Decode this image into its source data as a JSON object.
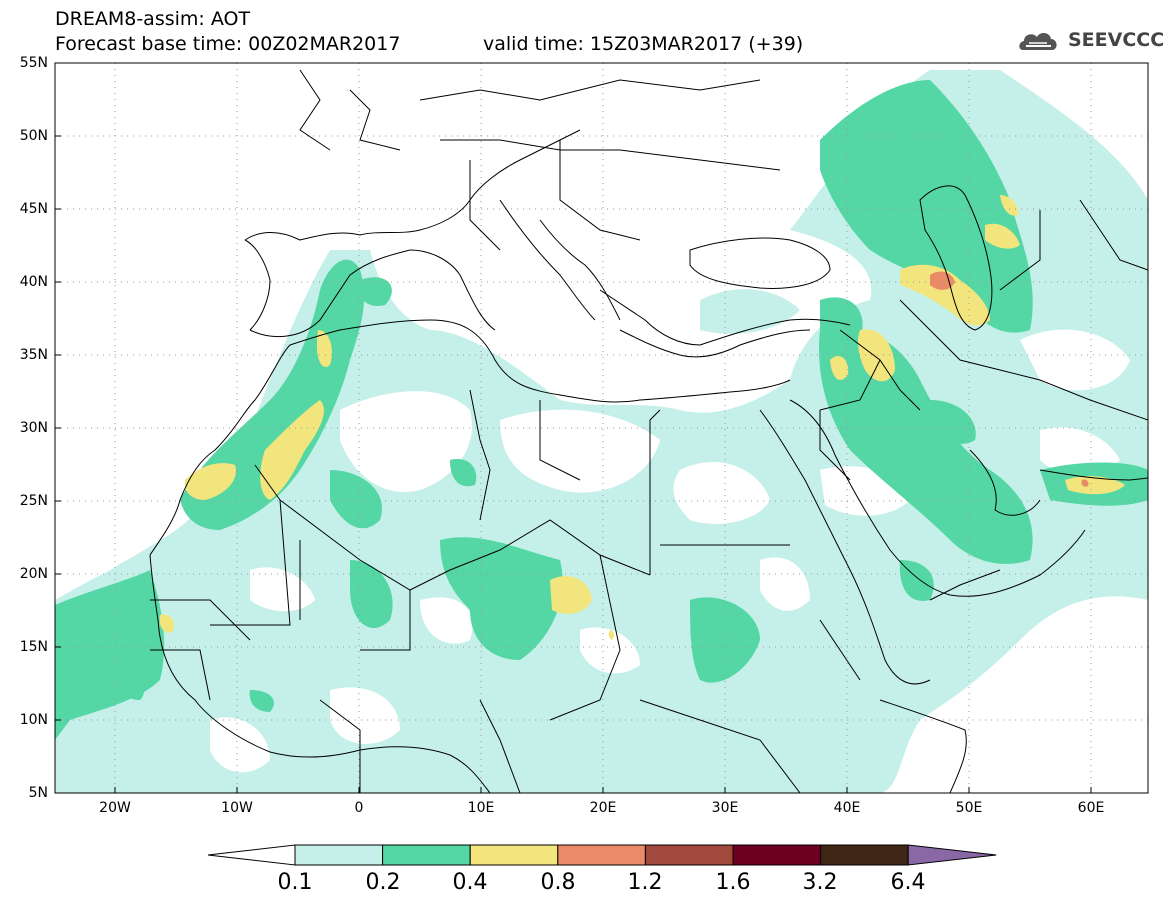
{
  "header": {
    "title_line1": "DREAM8-assim: AOT",
    "title_line2": "Forecast base time: 00Z02MAR2017",
    "valid_time": "valid time: 15Z03MAR2017 (+39)",
    "logo_text": "SEEVCCC",
    "logo_icon": "cloud-logo-icon"
  },
  "map": {
    "lat_labels": [
      "55N",
      "50N",
      "45N",
      "40N",
      "35N",
      "30N",
      "25N",
      "20N",
      "15N",
      "10N",
      "5N"
    ],
    "lon_labels": [
      "20W",
      "10W",
      "0",
      "10E",
      "20E",
      "30E",
      "40E",
      "50E",
      "60E"
    ]
  },
  "legend": {
    "levels": [
      "0.1",
      "0.2",
      "0.4",
      "0.8",
      "1.2",
      "1.6",
      "3.2",
      "6.4"
    ],
    "colors": [
      "#ffffff",
      "#c5f0ea",
      "#54d7a4",
      "#f3e57d",
      "#e98b66",
      "#a2493e",
      "#6d0022",
      "#3e2514",
      "#8a68a6"
    ]
  }
}
